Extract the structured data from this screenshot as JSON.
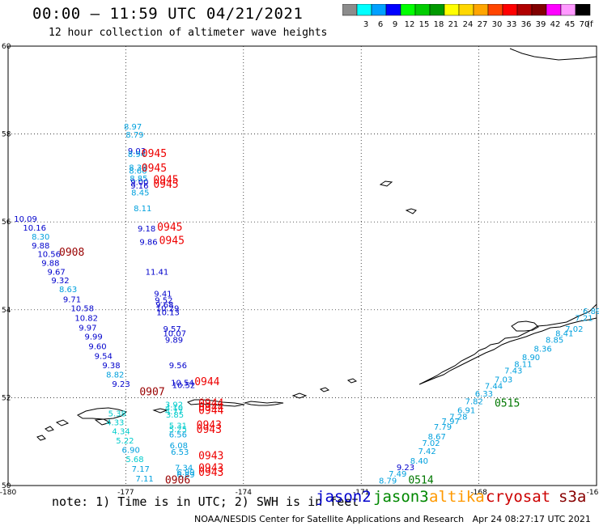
{
  "header": {
    "title": "00:00 – 11:59 UTC 04/21/2021",
    "subtitle": "12 hour collection of altimeter wave heights"
  },
  "legend": {
    "unit_label": "(ft)",
    "bins": [
      {
        "label": "",
        "color": "#8c8c8c"
      },
      {
        "label": "3",
        "color": "#00ffff"
      },
      {
        "label": "6",
        "color": "#00a0ff"
      },
      {
        "label": "9",
        "color": "#0000ff"
      },
      {
        "label": "12",
        "color": "#00ff00"
      },
      {
        "label": "15",
        "color": "#00cc00"
      },
      {
        "label": "18",
        "color": "#009900"
      },
      {
        "label": "21",
        "color": "#ffff00"
      },
      {
        "label": "24",
        "color": "#ffd700"
      },
      {
        "label": "27",
        "color": "#ffa500"
      },
      {
        "label": "30",
        "color": "#ff4500"
      },
      {
        "label": "33",
        "color": "#ff0000"
      },
      {
        "label": "36",
        "color": "#b00000"
      },
      {
        "label": "39",
        "color": "#800000"
      },
      {
        "label": "42",
        "color": "#ff00ff"
      },
      {
        "label": "45",
        "color": "#ff99ff"
      },
      {
        "label": "70",
        "color": "#000000"
      }
    ]
  },
  "axes": {
    "lon_labels": [
      "-180",
      "-177",
      "-174",
      "-171",
      "-168",
      "-16"
    ],
    "lat_labels": [
      "60",
      "58",
      "56",
      "54",
      "52",
      "50"
    ]
  },
  "footer": {
    "note": "note: 1) Time is in UTC; 2) SWH is in feet",
    "missions": [
      {
        "name": "jason2",
        "color": "#0000cc"
      },
      {
        "name": "jason3",
        "color": "#008800"
      },
      {
        "name": "altika",
        "color": "#ff9900"
      },
      {
        "name": "cryosat",
        "color": "#cc0000"
      },
      {
        "name": "s3a",
        "color": "#880000"
      }
    ],
    "credit": "NOAA/NESDIS Center for Satellite Applications and Research   Apr 24 08:27:17 UTC 2021"
  },
  "observations": [
    {
      "v": "8.97",
      "c": "#00a0dd",
      "lon": -177.05,
      "lat": 58.1
    },
    {
      "v": "8.79",
      "c": "#00a0dd",
      "lon": -177.0,
      "lat": 57.92
    },
    {
      "v": "9.03",
      "c": "#0000cc",
      "lon": -176.95,
      "lat": 57.55
    },
    {
      "v": "8.94",
      "c": "#00a0dd",
      "lon": -176.95,
      "lat": 57.48
    },
    {
      "v": "8.38",
      "c": "#00a0dd",
      "lon": -176.92,
      "lat": 57.17
    },
    {
      "v": "8.66",
      "c": "#00a0dd",
      "lon": -176.92,
      "lat": 57.1
    },
    {
      "v": "8.85",
      "c": "#00a0dd",
      "lon": -176.9,
      "lat": 56.92
    },
    {
      "v": "9.00",
      "c": "#0000cc",
      "lon": -176.88,
      "lat": 56.84
    },
    {
      "v": "9.16",
      "c": "#0000cc",
      "lon": -176.88,
      "lat": 56.76
    },
    {
      "v": "8.45",
      "c": "#00a0dd",
      "lon": -176.86,
      "lat": 56.6
    },
    {
      "v": "8.11",
      "c": "#00a0dd",
      "lon": -176.8,
      "lat": 56.24
    },
    {
      "v": "9.18",
      "c": "#0000cc",
      "lon": -176.7,
      "lat": 55.78
    },
    {
      "v": "9.86",
      "c": "#0000cc",
      "lon": -176.65,
      "lat": 55.48
    },
    {
      "v": "11.41",
      "c": "#0000cc",
      "lon": -176.5,
      "lat": 54.8
    },
    {
      "v": "9.41",
      "c": "#0000cc",
      "lon": -176.28,
      "lat": 54.3
    },
    {
      "v": "9.52",
      "c": "#0000cc",
      "lon": -176.26,
      "lat": 54.15
    },
    {
      "v": "9.68",
      "c": "#0000cc",
      "lon": -176.24,
      "lat": 54.05
    },
    {
      "v": "10.29",
      "c": "#0000cc",
      "lon": -176.23,
      "lat": 53.97
    },
    {
      "v": "10.13",
      "c": "#0000cc",
      "lon": -176.22,
      "lat": 53.88
    },
    {
      "v": "9.57",
      "c": "#0000cc",
      "lon": -176.05,
      "lat": 53.5
    },
    {
      "v": "10.07",
      "c": "#0000cc",
      "lon": -176.05,
      "lat": 53.4
    },
    {
      "v": "9.89",
      "c": "#0000cc",
      "lon": -176.0,
      "lat": 53.25
    },
    {
      "v": "9.56",
      "c": "#0000cc",
      "lon": -175.9,
      "lat": 52.67
    },
    {
      "v": "10.54",
      "c": "#0000cc",
      "lon": -175.85,
      "lat": 52.27
    },
    {
      "v": "10.52",
      "c": "#0000cc",
      "lon": -175.82,
      "lat": 52.22
    },
    {
      "v": "10.09",
      "c": "#0000cc",
      "lon": -179.85,
      "lat": 56.0
    },
    {
      "v": "10.16",
      "c": "#0000cc",
      "lon": -179.62,
      "lat": 55.8
    },
    {
      "v": "8.30",
      "c": "#00a0dd",
      "lon": -179.4,
      "lat": 55.6
    },
    {
      "v": "9.88",
      "c": "#0000cc",
      "lon": -179.4,
      "lat": 55.4
    },
    {
      "v": "10.56",
      "c": "#0000cc",
      "lon": -179.25,
      "lat": 55.2
    },
    {
      "v": "9.88",
      "c": "#0000cc",
      "lon": -179.15,
      "lat": 55.0
    },
    {
      "v": "9.67",
      "c": "#0000cc",
      "lon": -179.0,
      "lat": 54.8
    },
    {
      "v": "9.32",
      "c": "#0000cc",
      "lon": -178.9,
      "lat": 54.6
    },
    {
      "v": "8.63",
      "c": "#00a0dd",
      "lon": -178.7,
      "lat": 54.4
    },
    {
      "v": "9.71",
      "c": "#0000cc",
      "lon": -178.6,
      "lat": 54.17
    },
    {
      "v": "10.58",
      "c": "#0000cc",
      "lon": -178.4,
      "lat": 53.97
    },
    {
      "v": "10.82",
      "c": "#0000cc",
      "lon": -178.3,
      "lat": 53.75
    },
    {
      "v": "9.97",
      "c": "#0000cc",
      "lon": -178.2,
      "lat": 53.53
    },
    {
      "v": "9.99",
      "c": "#0000cc",
      "lon": -178.05,
      "lat": 53.32
    },
    {
      "v": "9.60",
      "c": "#0000cc",
      "lon": -177.95,
      "lat": 53.1
    },
    {
      "v": "9.54",
      "c": "#0000cc",
      "lon": -177.8,
      "lat": 52.88
    },
    {
      "v": "9.38",
      "c": "#0000cc",
      "lon": -177.6,
      "lat": 52.67
    },
    {
      "v": "8.82",
      "c": "#00a0dd",
      "lon": -177.5,
      "lat": 52.46
    },
    {
      "v": "9.23",
      "c": "#0000cc",
      "lon": -177.35,
      "lat": 52.25
    },
    {
      "v": "5.38",
      "c": "#00cccc",
      "lon": -177.45,
      "lat": 51.57
    },
    {
      "v": "4.33",
      "c": "#00cccc",
      "lon": -177.5,
      "lat": 51.37
    },
    {
      "v": "4.34",
      "c": "#00cccc",
      "lon": -177.35,
      "lat": 51.17
    },
    {
      "v": "5.22",
      "c": "#00cccc",
      "lon": -177.25,
      "lat": 50.96
    },
    {
      "v": "6.90",
      "c": "#00a0dd",
      "lon": -177.1,
      "lat": 50.75
    },
    {
      "v": "5.68",
      "c": "#00cccc",
      "lon": -177.0,
      "lat": 50.53
    },
    {
      "v": "7.17",
      "c": "#00a0dd",
      "lon": -176.85,
      "lat": 50.31
    },
    {
      "v": "7.11",
      "c": "#00a0dd",
      "lon": -176.75,
      "lat": 50.09
    },
    {
      "v": "3.92",
      "c": "#00cccc",
      "lon": -176.0,
      "lat": 51.78
    },
    {
      "v": "4.10",
      "c": "#00cccc",
      "lon": -176.0,
      "lat": 51.7
    },
    {
      "v": "4.77",
      "c": "#00cccc",
      "lon": -176.0,
      "lat": 51.62
    },
    {
      "v": "3.85",
      "c": "#00cccc",
      "lon": -175.98,
      "lat": 51.55
    },
    {
      "v": "5.31",
      "c": "#00cccc",
      "lon": -175.9,
      "lat": 51.3
    },
    {
      "v": "5.25",
      "c": "#00cccc",
      "lon": -175.9,
      "lat": 51.22
    },
    {
      "v": "6.56",
      "c": "#00a0dd",
      "lon": -175.9,
      "lat": 51.1
    },
    {
      "v": "6.08",
      "c": "#00a0dd",
      "lon": -175.88,
      "lat": 50.85
    },
    {
      "v": "6.53",
      "c": "#00a0dd",
      "lon": -175.85,
      "lat": 50.7
    },
    {
      "v": "7.34",
      "c": "#00a0dd",
      "lon": -175.75,
      "lat": 50.34
    },
    {
      "v": "6.99",
      "c": "#00a0dd",
      "lon": -175.7,
      "lat": 50.24
    },
    {
      "v": "6.89",
      "c": "#00a0dd",
      "lon": -175.7,
      "lat": 50.18
    },
    {
      "v": "9.23",
      "c": "#0000cc",
      "lon": -170.1,
      "lat": 50.35
    },
    {
      "v": "7.49",
      "c": "#00a0dd",
      "lon": -170.3,
      "lat": 50.2
    },
    {
      "v": "8.79",
      "c": "#00a0dd",
      "lon": -170.55,
      "lat": 50.05
    },
    {
      "v": "8.40",
      "c": "#00a0dd",
      "lon": -169.75,
      "lat": 50.5
    },
    {
      "v": "7.02",
      "c": "#00a0dd",
      "lon": -169.45,
      "lat": 50.9
    },
    {
      "v": "7.42",
      "c": "#00a0dd",
      "lon": -169.55,
      "lat": 50.72
    },
    {
      "v": "8.67",
      "c": "#00a0dd",
      "lon": -169.3,
      "lat": 51.05
    },
    {
      "v": "7.79",
      "c": "#00a0dd",
      "lon": -169.15,
      "lat": 51.27
    },
    {
      "v": "7.97",
      "c": "#00a0dd",
      "lon": -168.95,
      "lat": 51.4
    },
    {
      "v": "7.28",
      "c": "#00a0dd",
      "lon": -168.75,
      "lat": 51.5
    },
    {
      "v": "6.91",
      "c": "#00a0dd",
      "lon": -168.55,
      "lat": 51.65
    },
    {
      "v": "7.82",
      "c": "#00a0dd",
      "lon": -168.35,
      "lat": 51.85
    },
    {
      "v": "6.33",
      "c": "#00a0dd",
      "lon": -168.1,
      "lat": 52.03
    },
    {
      "v": "7.44",
      "c": "#00a0dd",
      "lon": -167.85,
      "lat": 52.2
    },
    {
      "v": "7.03",
      "c": "#00a0dd",
      "lon": -167.6,
      "lat": 52.35
    },
    {
      "v": "7.43",
      "c": "#00a0dd",
      "lon": -167.35,
      "lat": 52.55
    },
    {
      "v": "8.11",
      "c": "#00a0dd",
      "lon": -167.1,
      "lat": 52.7
    },
    {
      "v": "8.90",
      "c": "#00a0dd",
      "lon": -166.9,
      "lat": 52.85
    },
    {
      "v": "8.36",
      "c": "#00a0dd",
      "lon": -166.6,
      "lat": 53.05
    },
    {
      "v": "8.85",
      "c": "#00a0dd",
      "lon": -166.3,
      "lat": 53.25
    },
    {
      "v": "8.41",
      "c": "#00a0dd",
      "lon": -166.05,
      "lat": 53.4
    },
    {
      "v": "7.02",
      "c": "#00a0dd",
      "lon": -165.8,
      "lat": 53.5
    },
    {
      "v": "7.21",
      "c": "#00a0dd",
      "lon": -165.55,
      "lat": 53.75
    },
    {
      "v": "6.89",
      "c": "#00a0dd",
      "lon": -165.35,
      "lat": 53.9
    }
  ],
  "time_labels": [
    {
      "t": "0945",
      "c": "#ee0000",
      "lon": -176.6,
      "lat": 57.48
    },
    {
      "t": "0945",
      "c": "#ee0000",
      "lon": -176.6,
      "lat": 57.15
    },
    {
      "t": "0945",
      "c": "#ee0000",
      "lon": -176.3,
      "lat": 56.88
    },
    {
      "t": "0945",
      "c": "#ee0000",
      "lon": -176.3,
      "lat": 56.78
    },
    {
      "t": "0945",
      "c": "#ee0000",
      "lon": -176.2,
      "lat": 55.8
    },
    {
      "t": "0945",
      "c": "#ee0000",
      "lon": -176.15,
      "lat": 55.5
    },
    {
      "t": "0908",
      "c": "#990000",
      "lon": -178.7,
      "lat": 55.23
    },
    {
      "t": "0944",
      "c": "#ee0000",
      "lon": -175.25,
      "lat": 52.28
    },
    {
      "t": "0907",
      "c": "#990000",
      "lon": -176.65,
      "lat": 52.05
    },
    {
      "t": "0944",
      "c": "#ee0000",
      "lon": -175.15,
      "lat": 51.8
    },
    {
      "t": "0944",
      "c": "#ee0000",
      "lon": -175.15,
      "lat": 51.7
    },
    {
      "t": "0944",
      "c": "#ee0000",
      "lon": -175.15,
      "lat": 51.63
    },
    {
      "t": "0943",
      "c": "#ee0000",
      "lon": -175.2,
      "lat": 51.3
    },
    {
      "t": "0943",
      "c": "#ee0000",
      "lon": -175.2,
      "lat": 51.2
    },
    {
      "t": "0943",
      "c": "#ee0000",
      "lon": -175.15,
      "lat": 50.6
    },
    {
      "t": "0943",
      "c": "#ee0000",
      "lon": -175.15,
      "lat": 50.32
    },
    {
      "t": "0943",
      "c": "#ee0000",
      "lon": -175.15,
      "lat": 50.22
    },
    {
      "t": "0906",
      "c": "#990000",
      "lon": -176.0,
      "lat": 50.05
    },
    {
      "t": "0515",
      "c": "#007700",
      "lon": -167.6,
      "lat": 51.8
    },
    {
      "t": "0514",
      "c": "#007700",
      "lon": -169.8,
      "lat": 50.05
    }
  ]
}
